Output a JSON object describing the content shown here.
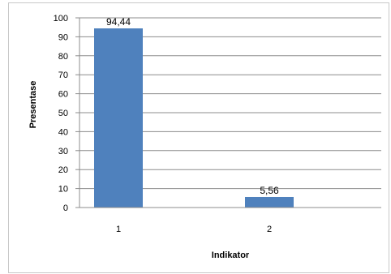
{
  "chart_data": {
    "type": "bar",
    "categories": [
      "1",
      "2"
    ],
    "values": [
      94.44,
      5.56
    ],
    "data_labels": [
      "94,44",
      "5,56"
    ],
    "xlabel": "Indikator",
    "ylabel": "Presentase",
    "ylim": [
      0,
      100
    ],
    "ytick_step": 10,
    "yticks": [
      "0",
      "10",
      "20",
      "30",
      "40",
      "50",
      "60",
      "70",
      "80",
      "90",
      "100"
    ],
    "grid": true,
    "legend": "none",
    "bar_color": "#4f81bd"
  }
}
